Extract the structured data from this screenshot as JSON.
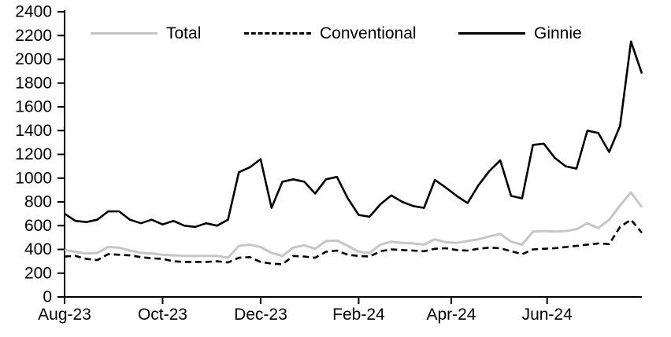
{
  "legend": [
    {
      "label": "Total",
      "color": "#c6c6c6",
      "dash": "solid"
    },
    {
      "label": "Conventional",
      "color": "#000000",
      "dash": "dashed"
    },
    {
      "label": "Ginnie",
      "color": "#000000",
      "dash": "solid"
    }
  ],
  "chart_data": {
    "type": "line",
    "title": "",
    "xlabel": "",
    "ylabel": "",
    "ylim": [
      0,
      2400
    ],
    "y_tick_step": 200,
    "y_tick_labels": [
      "0",
      "200",
      "400",
      "600",
      "800",
      "1000",
      "1200",
      "1400",
      "1600",
      "1800",
      "2000",
      "2200",
      "2400"
    ],
    "x_tick_labels": [
      "Aug-23",
      "Oct-23",
      "Dec-23",
      "Feb-24",
      "Apr-24",
      "Jun-24"
    ],
    "x_tick_point_indices": [
      0,
      9,
      18,
      27,
      35.5,
      44.3
    ],
    "x_unit": "weekly observations, Aug-2023 through Aug-2024",
    "grid": false,
    "legend_position": "top",
    "series": [
      {
        "name": "Total",
        "color": "#c6c6c6",
        "dash": "solid",
        "values": [
          395,
          380,
          365,
          370,
          420,
          415,
          390,
          372,
          365,
          355,
          350,
          345,
          345,
          345,
          345,
          330,
          430,
          440,
          420,
          370,
          345,
          415,
          435,
          405,
          470,
          475,
          430,
          380,
          370,
          440,
          465,
          455,
          450,
          440,
          485,
          460,
          455,
          470,
          485,
          510,
          530,
          465,
          440,
          550,
          555,
          550,
          555,
          570,
          620,
          580,
          650,
          770,
          880,
          755
        ]
      },
      {
        "name": "Conventional",
        "color": "#000000",
        "dash": "dashed",
        "values": [
          340,
          345,
          320,
          310,
          360,
          355,
          350,
          335,
          325,
          320,
          300,
          295,
          295,
          295,
          300,
          290,
          330,
          335,
          295,
          280,
          275,
          345,
          340,
          330,
          380,
          390,
          355,
          345,
          340,
          385,
          400,
          395,
          390,
          385,
          405,
          410,
          395,
          390,
          405,
          415,
          410,
          385,
          360,
          400,
          405,
          410,
          420,
          430,
          440,
          450,
          445,
          590,
          650,
          540
        ]
      },
      {
        "name": "Ginnie",
        "color": "#000000",
        "dash": "solid",
        "values": [
          700,
          640,
          630,
          650,
          720,
          720,
          650,
          620,
          650,
          610,
          640,
          600,
          590,
          620,
          600,
          650,
          1050,
          1090,
          1160,
          750,
          970,
          990,
          970,
          870,
          990,
          1010,
          830,
          690,
          675,
          780,
          855,
          800,
          765,
          750,
          985,
          920,
          850,
          790,
          940,
          1060,
          1150,
          850,
          830,
          1280,
          1290,
          1170,
          1100,
          1080,
          1400,
          1380,
          1220,
          1440,
          2150,
          1880
        ]
      }
    ]
  }
}
